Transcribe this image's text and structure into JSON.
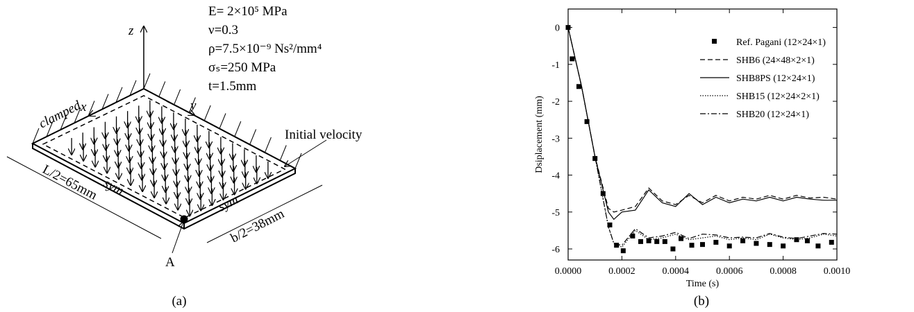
{
  "diagram": {
    "props": [
      "E= 2×10⁵ MPa",
      "ν=0.3",
      "ρ=7.5×10⁻⁹ Ns²/mm⁴",
      "σₛ=250 MPa",
      "t=1.5mm"
    ],
    "axis_z": "z",
    "axis_x": "x",
    "axis_y": "y",
    "clamped": "clamped",
    "sym_left": "sym",
    "sym_right": "sym",
    "length": "L/2=65mm",
    "width": "b/2=38mm",
    "velocity": "Initial velocity",
    "point": "A"
  },
  "captions": [
    "(a)",
    "(b)"
  ],
  "chart_data": {
    "type": "line",
    "x_label": "Time (s)",
    "y_label": "Dsiplacement (mm)",
    "xlim": [
      0,
      0.001
    ],
    "ylim": [
      -6.3,
      0.5
    ],
    "xticks": [
      {
        "value": 0,
        "label": "0.0000"
      },
      {
        "value": 0.0002,
        "label": "0.0002"
      },
      {
        "value": 0.0004,
        "label": "0.0004"
      },
      {
        "value": 0.0006,
        "label": "0.0006"
      },
      {
        "value": 0.0008,
        "label": "0.0008"
      },
      {
        "value": 0.001,
        "label": "0.0010"
      }
    ],
    "yticks": [
      0,
      -1,
      -2,
      -3,
      -4,
      -5,
      -6
    ],
    "grid": false,
    "legend": "upper right",
    "x": [
      0,
      5e-05,
      0.0001,
      0.00015,
      0.00017,
      0.0002,
      0.00025,
      0.0003,
      0.00035,
      0.0004,
      0.00045,
      0.0005,
      0.00055,
      0.0006,
      0.00065,
      0.0007,
      0.00075,
      0.0008,
      0.00085,
      0.0009,
      0.00095,
      0.001
    ],
    "series": [
      {
        "name": "Ref. Pagani (12×24×1)",
        "color": "#000000",
        "marker": "square",
        "x": [
          0,
          1.5e-05,
          4e-05,
          7e-05,
          0.0001,
          0.00013,
          0.000155,
          0.00018,
          0.000205,
          0.00024,
          0.00027,
          0.0003,
          0.00033,
          0.00036,
          0.00039,
          0.00042,
          0.00046,
          0.0005,
          0.00055,
          0.0006,
          0.00065,
          0.0007,
          0.00075,
          0.0008,
          0.00085,
          0.00089,
          0.00093,
          0.00098
        ],
        "values": [
          0,
          -0.85,
          -1.6,
          -2.55,
          -3.55,
          -4.5,
          -5.35,
          -5.9,
          -6.05,
          -5.65,
          -5.8,
          -5.78,
          -5.8,
          -5.8,
          -6.0,
          -5.72,
          -5.9,
          -5.88,
          -5.82,
          -5.92,
          -5.78,
          -5.85,
          -5.88,
          -5.92,
          -5.75,
          -5.78,
          -5.92,
          -5.82
        ]
      },
      {
        "name": "SHB6 (24×48×2×1)",
        "color": "#000000",
        "line_style": "dashed",
        "values": [
          0,
          -1.6,
          -3.5,
          -4.9,
          -5.0,
          -4.95,
          -4.85,
          -4.35,
          -4.7,
          -4.8,
          -4.55,
          -4.75,
          -4.55,
          -4.7,
          -4.6,
          -4.65,
          -4.55,
          -4.65,
          -4.55,
          -4.62,
          -4.6,
          -4.65
        ]
      },
      {
        "name": "SHB8PS (12×24×1)",
        "color": "#000000",
        "line_style": "solid",
        "values": [
          0,
          -1.6,
          -3.5,
          -5.0,
          -5.2,
          -5.0,
          -4.95,
          -4.4,
          -4.75,
          -4.85,
          -4.5,
          -4.8,
          -4.6,
          -4.75,
          -4.65,
          -4.7,
          -4.6,
          -4.7,
          -4.6,
          -4.65,
          -4.68,
          -4.68
        ]
      },
      {
        "name": "SHB15 (12×24×2×1)",
        "color": "#000000",
        "line_style": "dotted",
        "values": [
          0,
          -1.6,
          -3.5,
          -5.4,
          -5.85,
          -5.95,
          -5.5,
          -5.75,
          -5.7,
          -5.6,
          -5.75,
          -5.7,
          -5.65,
          -5.75,
          -5.7,
          -5.75,
          -5.6,
          -5.7,
          -5.75,
          -5.7,
          -5.6,
          -5.65
        ]
      },
      {
        "name": "SHB20 (12×24×1)",
        "color": "#000000",
        "line_style": "dashdot",
        "values": [
          0,
          -1.6,
          -3.5,
          -5.4,
          -5.85,
          -5.9,
          -5.45,
          -5.7,
          -5.65,
          -5.55,
          -5.72,
          -5.6,
          -5.62,
          -5.7,
          -5.68,
          -5.7,
          -5.58,
          -5.68,
          -5.72,
          -5.65,
          -5.58,
          -5.6
        ]
      }
    ]
  }
}
